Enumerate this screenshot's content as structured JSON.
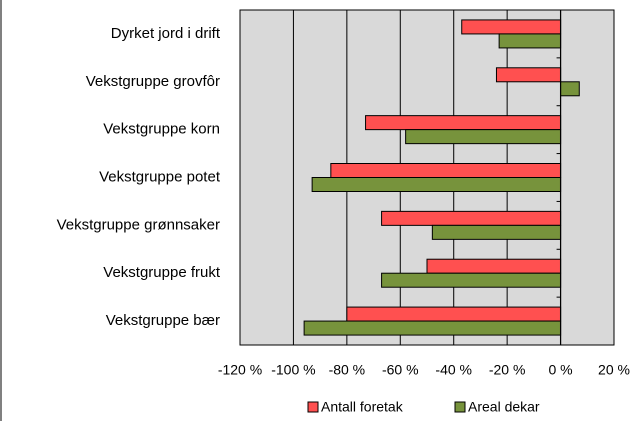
{
  "chart_data": {
    "type": "bar",
    "orientation": "horizontal",
    "categories": [
      "Dyrket jord i drift",
      "Vekstgruppe grovfôr",
      "Vekstgruppe korn",
      "Vekstgruppe potet",
      "Vekstgruppe grønnsaker",
      "Vekstgruppe frukt",
      "Vekstgruppe bær"
    ],
    "series": [
      {
        "name": "Antall foretak",
        "color": "#ff5050",
        "values": [
          -37,
          -24,
          -73,
          -86,
          -67,
          -50,
          -80
        ]
      },
      {
        "name": "Areal dekar",
        "color": "#77933c",
        "values": [
          -23,
          7,
          -58,
          -93,
          -48,
          -67,
          -96
        ]
      }
    ],
    "xlim": [
      -120,
      20
    ],
    "xticks": [
      {
        "value": -120,
        "label": "-120 %"
      },
      {
        "value": -100,
        "label": "-100 %"
      },
      {
        "value": -80,
        "label": "-80 %"
      },
      {
        "value": -60,
        "label": "-60 %"
      },
      {
        "value": -40,
        "label": "-40 %"
      },
      {
        "value": -20,
        "label": "-20 %"
      },
      {
        "value": 0,
        "label": "0 %"
      },
      {
        "value": 20,
        "label": "20 %"
      }
    ],
    "grid": true,
    "legend": "bottom"
  }
}
